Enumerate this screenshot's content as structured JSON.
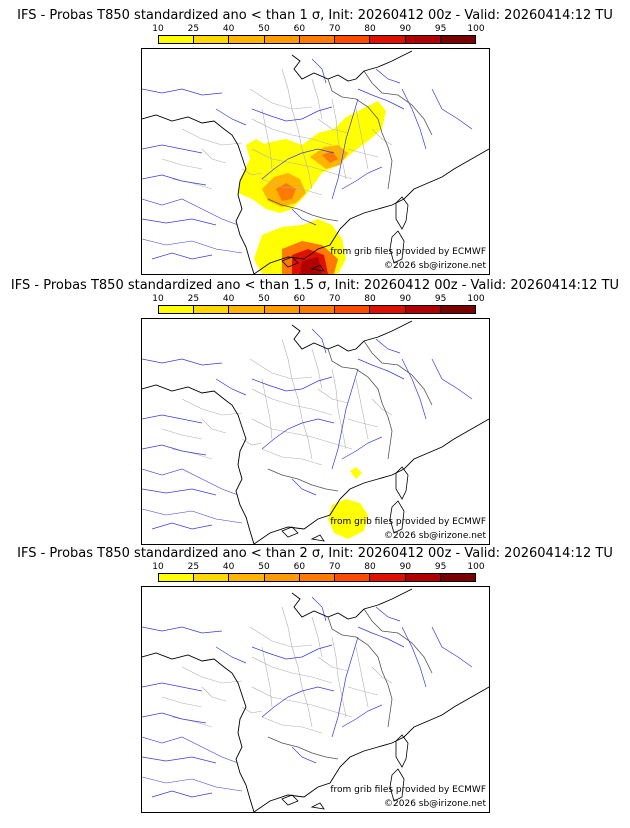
{
  "scale": {
    "labels": [
      "10",
      "25",
      "40",
      "50",
      "60",
      "70",
      "80",
      "90",
      "95",
      "100"
    ],
    "colors": [
      "#ffff00",
      "#ffd800",
      "#ffb400",
      "#ff9a00",
      "#ff7a00",
      "#ff4a00",
      "#e01000",
      "#b00000",
      "#7a0000"
    ]
  },
  "credits": {
    "source": "from grib files provided by ECMWF",
    "copyright": "©2026 sb@irizone.net"
  },
  "panels": [
    {
      "title": "IFS - Probas T850  standardized ano < than 1 σ, Init: 20260412 00z - Valid: 20260414:12 TU",
      "sigma": "1 σ",
      "coverage": "large"
    },
    {
      "title": "IFS - Probas T850  standardized ano < than 1.5 σ, Init: 20260412 00z - Valid: 20260414:12 TU",
      "sigma": "1.5 σ",
      "coverage": "small"
    },
    {
      "title": "IFS - Probas T850  standardized ano < than 2 σ, Init: 20260412 00z - Valid: 20260414:12 TU",
      "sigma": "2 σ",
      "coverage": "none"
    }
  ]
}
